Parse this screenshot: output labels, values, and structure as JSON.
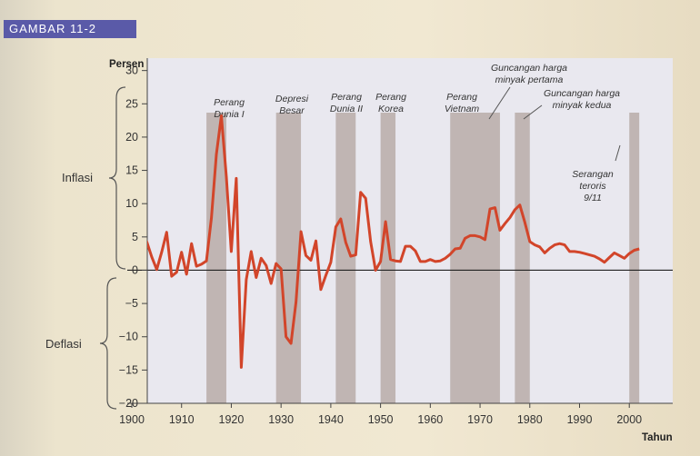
{
  "figure_label": "GAMBAR 11-2",
  "chart_data": {
    "type": "line",
    "ylabel": "Persen",
    "xlabel": "Tahun",
    "xlim": [
      1900,
      2008
    ],
    "ylim": [
      -20,
      32
    ],
    "x_ticks": [
      1900,
      1910,
      1920,
      1930,
      1940,
      1950,
      1960,
      1970,
      1980,
      1990,
      2000
    ],
    "y_ticks": [
      -20,
      -15,
      -10,
      -5,
      0,
      5,
      10,
      15,
      20,
      25,
      30
    ],
    "side_labels": {
      "inflation": "Inflasi",
      "deflation": "Deflasi"
    },
    "colors": {
      "line": "#d2452a",
      "band": "#b8aba8",
      "plot_bg": "#e9e8ef",
      "zero_line": "#222222"
    },
    "series": [
      {
        "x": [
          1900,
          1901,
          1902,
          1903,
          1904,
          1905,
          1906,
          1907,
          1908,
          1909,
          1910,
          1911,
          1912,
          1913,
          1914,
          1915,
          1916,
          1917,
          1918,
          1919,
          1920,
          1921,
          1922,
          1923,
          1924,
          1925,
          1926,
          1927,
          1928,
          1929,
          1930,
          1931,
          1932,
          1933,
          1934,
          1935,
          1936,
          1937,
          1938,
          1939,
          1940,
          1941,
          1942,
          1943,
          1944,
          1945,
          1946,
          1947,
          1948,
          1949,
          1950,
          1951,
          1952,
          1953,
          1954,
          1955,
          1956,
          1957,
          1958,
          1959,
          1960,
          1961,
          1962,
          1963,
          1964,
          1965,
          1966,
          1967,
          1968,
          1969,
          1970,
          1971,
          1972,
          1973,
          1974,
          1975,
          1976,
          1977,
          1978,
          1979,
          1980,
          1981,
          1982,
          1983,
          1984,
          1985,
          1986,
          1987,
          1988,
          1989,
          1990,
          1991,
          1992,
          1993,
          1994,
          1995,
          1996,
          1997,
          1998,
          1999,
          2000,
          2001,
          2002
        ],
        "values": [
          1.9,
          2.1,
          1.7,
          4.3,
          2.0,
          0.1,
          2.7,
          5.7,
          -0.9,
          -0.3,
          2.7,
          -0.6,
          4.0,
          0.6,
          0.9,
          1.4,
          7.9,
          17.4,
          23.2,
          14.0,
          2.8,
          13.8,
          -14.6,
          -1.4,
          2.8,
          -1.1,
          1.8,
          0.7,
          -2.0,
          1.0,
          0.2,
          -10.0,
          -11.0,
          -4.8,
          5.8,
          2.2,
          1.5,
          4.4,
          -2.9,
          -0.8,
          1.2,
          6.5,
          7.7,
          4.2,
          2.1,
          2.3,
          11.7,
          10.8,
          4.3,
          0.0,
          1.3,
          7.3,
          1.6,
          1.4,
          1.3,
          3.6,
          3.6,
          2.9,
          1.3,
          1.3,
          1.6,
          1.3,
          1.4,
          1.8,
          2.4,
          3.2,
          3.3,
          4.8,
          5.2,
          5.2,
          5.0,
          4.6,
          9.2,
          9.4,
          6.0,
          7.0,
          7.9,
          9.1,
          9.8,
          7.2,
          4.3,
          3.8,
          3.5,
          2.6,
          3.3,
          3.8,
          4.0,
          3.8,
          2.8,
          2.8,
          2.7,
          2.5,
          2.3,
          2.1,
          1.7,
          1.2,
          1.9,
          2.6,
          2.2,
          1.8,
          2.5,
          3.0,
          3.2
        ]
      }
    ],
    "events": [
      {
        "label": "Perang Dunia I",
        "start": 1915,
        "end": 1919
      },
      {
        "label": "Depresi Besar",
        "start": 1929,
        "end": 1934
      },
      {
        "label": "Perang Dunia II",
        "start": 1941,
        "end": 1945
      },
      {
        "label": "Perang Korea",
        "start": 1950,
        "end": 1953
      },
      {
        "label": "Perang Vietnam",
        "start": 1964,
        "end": 1972
      },
      {
        "label": "Guncangan harga minyak pertama",
        "start": 1972,
        "end": 1974
      },
      {
        "label": "Guncangan harga minyak kedua",
        "start": 1977,
        "end": 1980
      },
      {
        "label": "Serangan teroris 9/11",
        "start": 2000,
        "end": 2002
      }
    ]
  }
}
